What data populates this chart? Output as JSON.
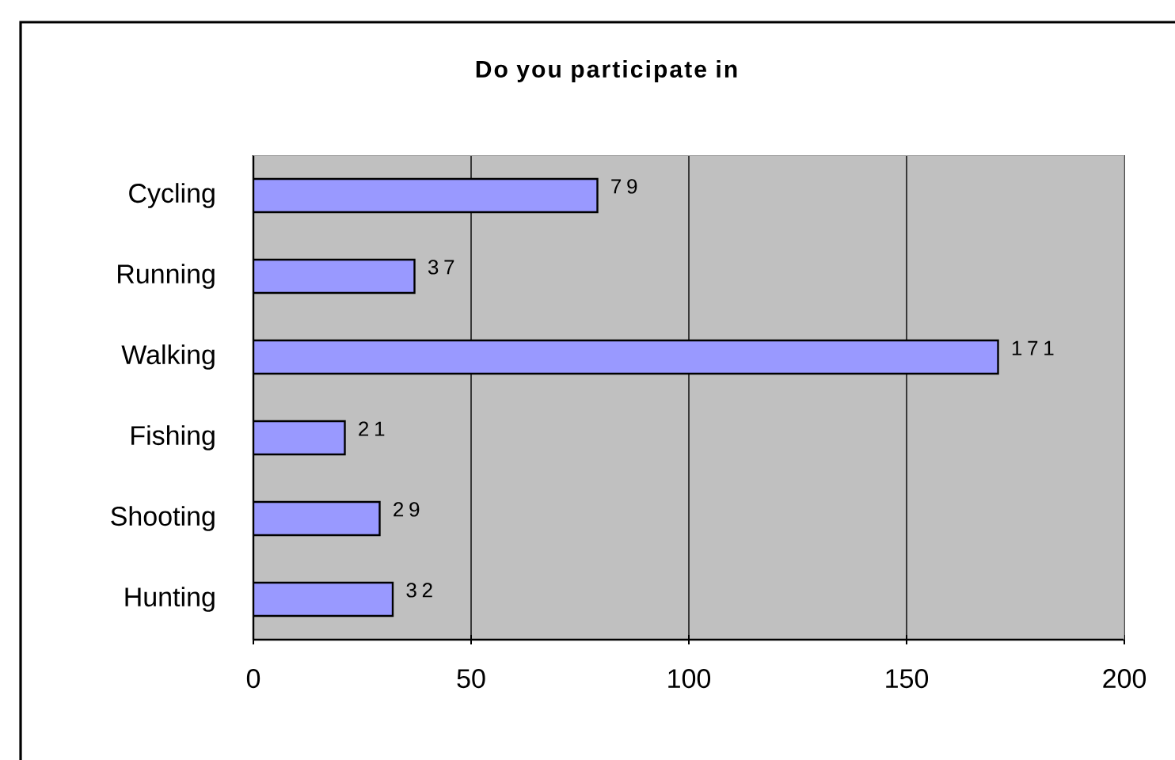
{
  "chart_data": {
    "type": "bar",
    "orientation": "horizontal",
    "title": "Do you participate in",
    "categories": [
      "Cycling",
      "Running",
      "Walking",
      "Fishing",
      "Shooting",
      "Hunting"
    ],
    "values": [
      79,
      37,
      171,
      21,
      29,
      32
    ],
    "color": "#9999ff",
    "xlim": [
      0,
      200
    ],
    "xticks": [
      0,
      50,
      100,
      150,
      200
    ],
    "grid": "x",
    "data_labels": true
  }
}
